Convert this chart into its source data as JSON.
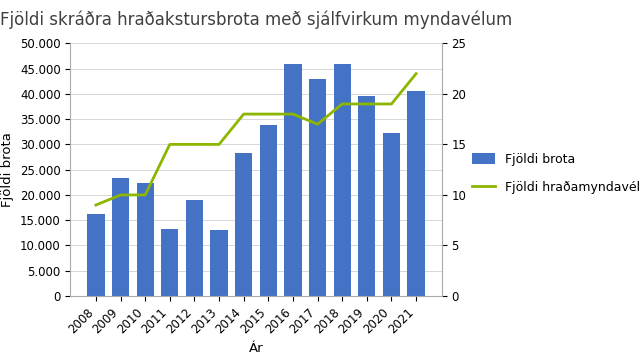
{
  "title": "Fjöldi skráðra hraðakstursbrota með sjálfvirkum myndavélum",
  "years": [
    2008,
    2009,
    2010,
    2011,
    2012,
    2013,
    2014,
    2015,
    2016,
    2017,
    2018,
    2019,
    2020,
    2021
  ],
  "bar_values": [
    16300,
    23300,
    22300,
    13200,
    19000,
    13000,
    28200,
    33800,
    46000,
    43000,
    46000,
    39500,
    32300,
    40500
  ],
  "line_values": [
    9,
    10,
    10,
    15,
    15,
    15,
    18,
    18,
    18,
    17,
    19,
    19,
    19,
    22
  ],
  "bar_color": "#4472C4",
  "line_color": "#8DB600",
  "ylabel_left": "Fjöldi brota",
  "xlabel": "Ár",
  "legend_bar": "Fjöldi brota",
  "legend_line": "Fjöldi hraðamyndavéla",
  "ylim_left": [
    0,
    50000
  ],
  "ylim_right": [
    0,
    25
  ],
  "yticks_left": [
    0,
    5000,
    10000,
    15000,
    20000,
    25000,
    30000,
    35000,
    40000,
    45000,
    50000
  ],
  "yticks_right": [
    0,
    5,
    10,
    15,
    20,
    25
  ],
  "background_color": "#ffffff",
  "title_fontsize": 12,
  "label_fontsize": 9.5,
  "tick_fontsize": 8.5,
  "legend_fontsize": 9
}
